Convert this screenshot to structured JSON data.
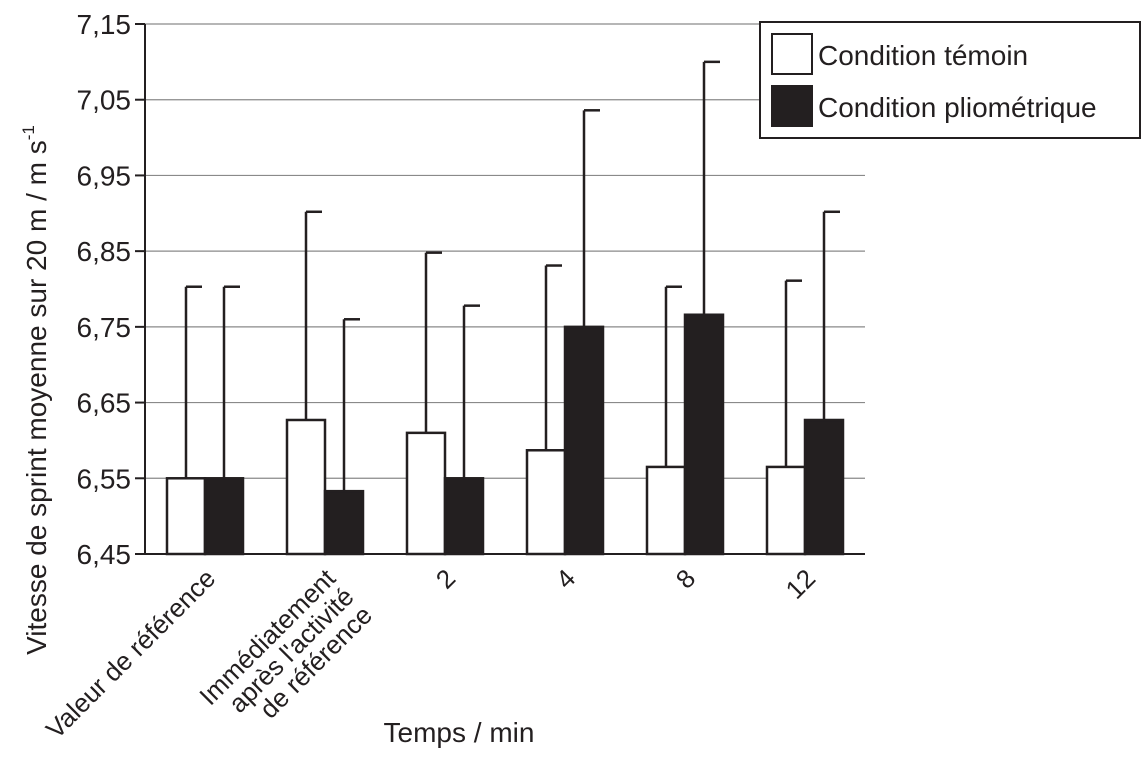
{
  "chart_data": {
    "type": "bar",
    "title": "",
    "xlabel": "Temps / min",
    "ylabel": "Vitesse de sprint moyenne sur  20 m / m s",
    "ylabel_superscript": "-1",
    "ylim": [
      6.45,
      7.15
    ],
    "yticks": [
      "6,45",
      "6,55",
      "6,65",
      "6,75",
      "6,85",
      "6,95",
      "7,05",
      "7,15"
    ],
    "grid": "horizontal",
    "legend_position": "top-right",
    "categories": [
      [
        "Valeur de référence"
      ],
      [
        "Immédiatement",
        "après l'activité",
        "de référence"
      ],
      [
        "2"
      ],
      [
        "4"
      ],
      [
        "8"
      ],
      [
        "12"
      ]
    ],
    "series": [
      {
        "name": "Condition témoin",
        "color": "#ffffff",
        "values": [
          6.55,
          6.627,
          6.61,
          6.587,
          6.565,
          6.565
        ],
        "error_top": [
          6.803,
          6.902,
          6.848,
          6.831,
          6.803,
          6.811
        ]
      },
      {
        "name": "Condition pliométrique",
        "color": "#231f20",
        "values": [
          6.55,
          6.533,
          6.55,
          6.75,
          6.766,
          6.627
        ],
        "error_top": [
          6.803,
          6.76,
          6.778,
          7.036,
          7.1,
          6.902
        ]
      }
    ]
  }
}
